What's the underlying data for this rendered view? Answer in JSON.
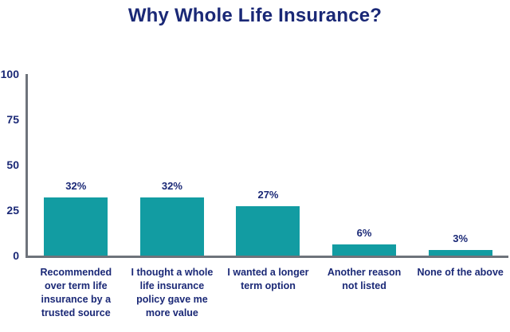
{
  "title": "Why Whole Life Insurance?",
  "colors": {
    "navy": "#1A2876",
    "teal": "#129CA2",
    "axis_gray": "#6E737B",
    "background": "#FFFFFF"
  },
  "chart_data": {
    "type": "bar",
    "title": "Why Whole Life Insurance?",
    "categories": [
      "Recommended\nover term life\ninsurance by a\ntrusted source",
      "I thought a whole\nlife insurance\npolicy gave me\nmore value",
      "I wanted a longer\nterm option",
      "Another reason\nnot listed",
      "None of the above"
    ],
    "values": [
      32,
      32,
      27,
      6,
      3
    ],
    "value_labels": [
      "32%",
      "32%",
      "27%",
      "6%",
      "3%"
    ],
    "xlabel": "",
    "ylabel": "",
    "ylim": [
      0,
      100
    ],
    "yticks": [
      0,
      25,
      50,
      75,
      100
    ],
    "grid": false,
    "legend": false,
    "bar_color": "#129CA2",
    "text_color": "#1A2876",
    "axis_color": "#6E737B"
  }
}
